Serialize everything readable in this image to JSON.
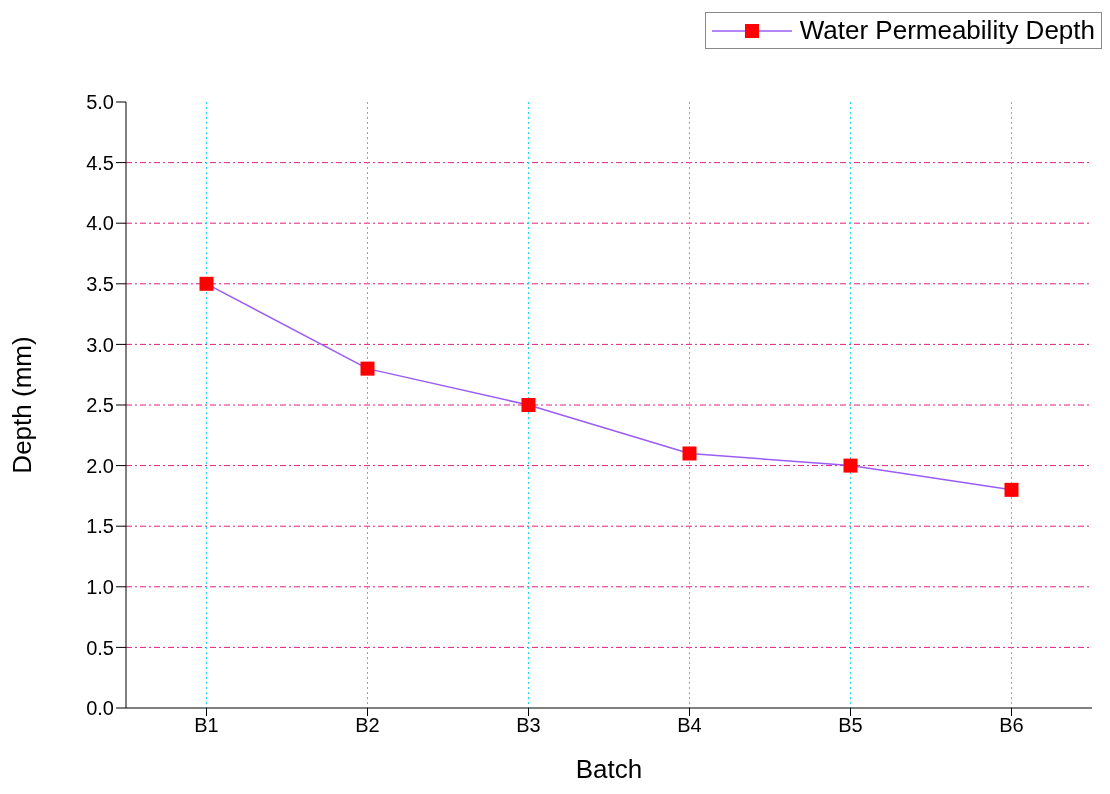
{
  "chart_data": {
    "type": "line",
    "xlabel": "Batch",
    "ylabel": "Depth (mm)",
    "categories": [
      "B1",
      "B2",
      "B3",
      "B4",
      "B5",
      "B6"
    ],
    "series": [
      {
        "name": "Water Permeability Depth",
        "color": "#ff0000",
        "values": [
          3.5,
          2.8,
          2.5,
          2.1,
          2.0,
          1.8
        ]
      }
    ],
    "ylim": [
      0,
      5
    ],
    "yticks": [
      {
        "value": 0,
        "label": "0.0"
      },
      {
        "value": 0.5,
        "label": "0.5"
      },
      {
        "value": 1,
        "label": "1.0"
      },
      {
        "value": 1.5,
        "label": "1.5"
      },
      {
        "value": 2,
        "label": "2.0"
      },
      {
        "value": 2.5,
        "label": "2.5"
      },
      {
        "value": 3,
        "label": "3.0"
      },
      {
        "value": 3.5,
        "label": "3.5"
      },
      {
        "value": 4,
        "label": "4.0"
      },
      {
        "value": 4.5,
        "label": "4.5"
      },
      {
        "value": 5,
        "label": "5.0"
      }
    ],
    "grid": true,
    "legend": "top right",
    "marker": "square",
    "line_style": "solid"
  }
}
